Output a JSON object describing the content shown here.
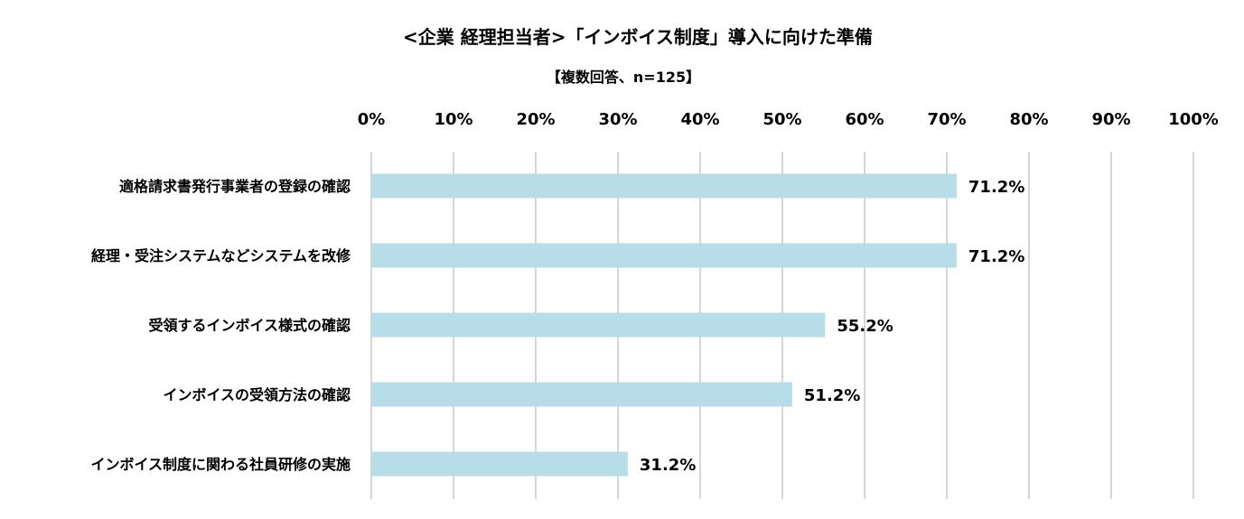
{
  "chart_data": {
    "type": "bar",
    "orientation": "horizontal",
    "title": "<企業 経理担当者>「インボイス制度」導入に向けた準備",
    "subtitle": "【複数回答、n=125】",
    "categories": [
      "適格請求書発行事業者の登録の確認",
      "経理・受注システムなどシステムを改修",
      "受領するインボイス様式の確認",
      "インボイスの受領方法の確認",
      "インボイス制度に関わる社員研修の実施"
    ],
    "values": [
      71.2,
      71.2,
      55.2,
      51.2,
      31.2
    ],
    "value_labels": [
      "71.2%",
      "71.2%",
      "55.2%",
      "51.2%",
      "31.2%"
    ],
    "xlim": [
      0,
      100
    ],
    "xticks": [
      0,
      10,
      20,
      30,
      40,
      50,
      60,
      70,
      80,
      90,
      100
    ],
    "xtick_labels": [
      "0%",
      "10%",
      "20%",
      "30%",
      "40%",
      "50%",
      "60%",
      "70%",
      "80%",
      "90%",
      "100%"
    ],
    "grid": true,
    "axis_position": "top",
    "colors": {
      "bar": "#b7dde8",
      "grid": "#c8c8c8",
      "text": "#000000"
    }
  }
}
